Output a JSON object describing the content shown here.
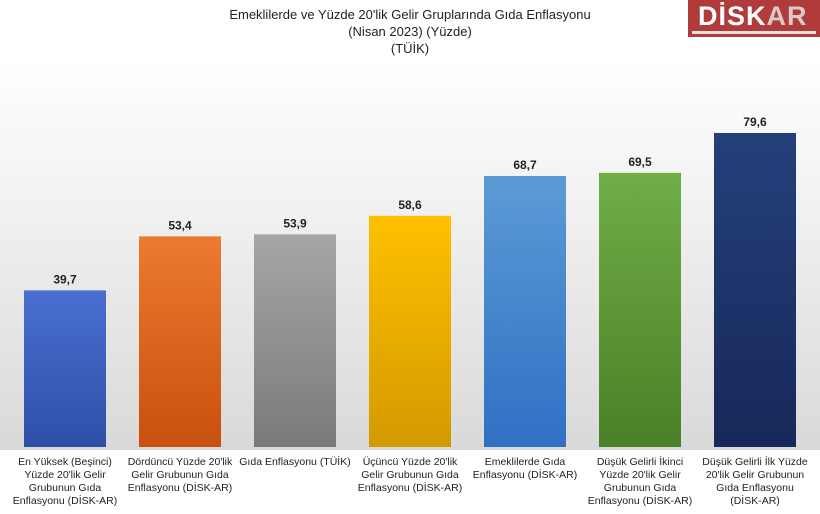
{
  "logo": {
    "text": "DİSK-AR"
  },
  "chart_data": {
    "type": "bar",
    "title": [
      "Emeklilerde ve Yüzde 20'lik Gelir Gruplarında Gıda Enflasyonu",
      "(Nisan 2023) (Yüzde)",
      "(TÜİK)"
    ],
    "categories": [
      "En Yüksek (Beşinci) Yüzde 20'lik Gelir Grubunun Gıda Enflasyonu (DİSK-AR)",
      "Dördüncü Yüzde 20'lik Gelir Grubunun Gıda Enflasyonu (DİSK-AR)",
      "Gıda Enflasyonu (TÜİK)",
      "Üçüncü Yüzde 20'lik Gelir Grubunun Gıda Enflasyonu (DİSK-AR)",
      "Emeklilerde Gıda Enflasyonu (DİSK-AR)",
      "Düşük Gelirli İkinci Yüzde 20'lik Gelir Grubunun Gıda Enflasyonu (DİSK-AR)",
      "Düşük Gelirli İlk Yüzde 20'lik Gelir Grubunun Gıda Enflasyonu (DİSK-AR)"
    ],
    "values": [
      39.7,
      53.4,
      53.9,
      58.6,
      68.7,
      69.5,
      79.6
    ],
    "labels": [
      "39,7",
      "53,4",
      "53,9",
      "58,6",
      "68,7",
      "69,5",
      "79,6"
    ],
    "colors": [
      [
        "#4a6fd0",
        "#2e4fa8"
      ],
      [
        "#ec7a30",
        "#c9500e"
      ],
      [
        "#a6a6a6",
        "#7a7a7a"
      ],
      [
        "#ffc000",
        "#d39a00"
      ],
      [
        "#5b9bd5",
        "#2f70c4"
      ],
      [
        "#70ad47",
        "#4a8026"
      ],
      [
        "#24407a",
        "#18285a"
      ]
    ],
    "ylim": [
      0,
      80
    ],
    "grid": false,
    "legend": "none"
  }
}
